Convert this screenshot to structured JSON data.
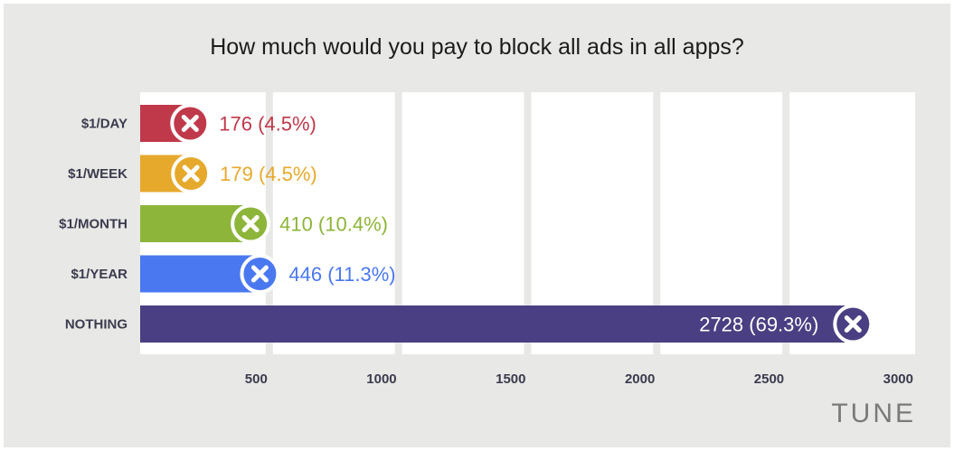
{
  "title": "How much would you pay to block all ads in all apps?",
  "logo_text": "TUNE",
  "chart_data": {
    "type": "bar",
    "orientation": "horizontal",
    "title": "How much would you pay to block all ads in all apps?",
    "categories": [
      "$1/DAY",
      "$1/WEEK",
      "$1/MONTH",
      "$1/YEAR",
      "NOTHING"
    ],
    "values": [
      176,
      179,
      410,
      446,
      2728
    ],
    "value_labels": [
      "176 (4.5%)",
      "179 (4.5%)",
      "410 (10.4%)",
      "446 (11.3%)",
      "2728 (69.3%)"
    ],
    "colors": [
      "#c0394a",
      "#e6a92b",
      "#8db53a",
      "#4a78f0",
      "#4a3f82"
    ],
    "xlim": [
      0,
      3000
    ],
    "x_ticks": [
      500,
      1000,
      1500,
      2000,
      2500,
      3000
    ],
    "x_tick_labels": [
      "500",
      "1000",
      "1500",
      "2000",
      "2500",
      "3000"
    ],
    "grid": true,
    "marker_icon": "close-icon"
  }
}
